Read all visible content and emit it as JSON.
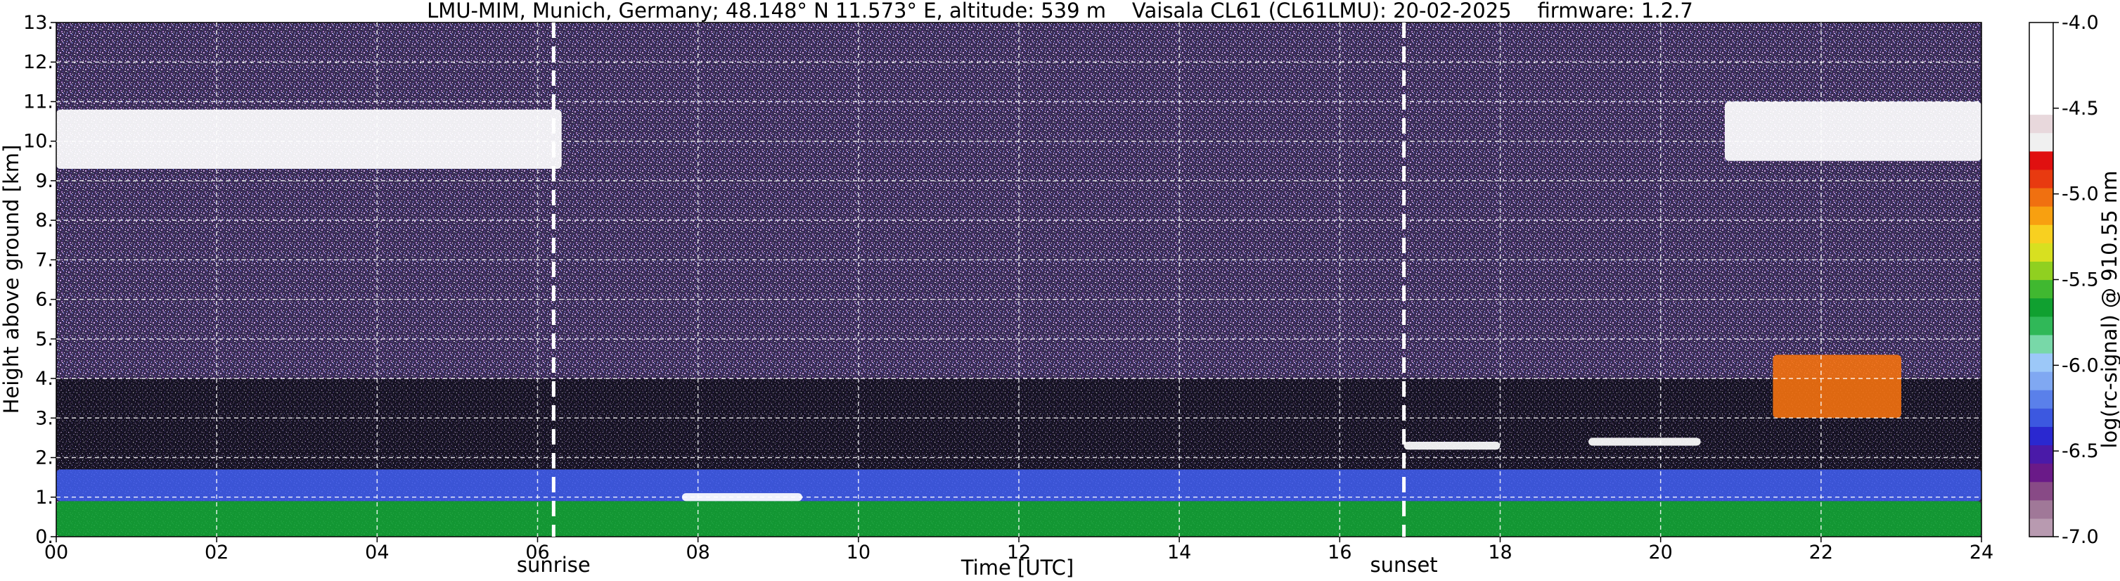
{
  "chart_data": {
    "type": "heatmap",
    "title": "LMU-MIM, Munich, Germany; 48.148° N 11.573° E, altitude: 539 m    Vaisala CL61 (CL61LMU): 20-02-2025    firmware: 1.2.7",
    "xlabel": "Time [UTC]",
    "ylabel": "Height above ground [km]",
    "xlim": [
      0,
      24
    ],
    "ylim": [
      0,
      13
    ],
    "x_ticks": [
      0,
      2,
      4,
      6,
      8,
      10,
      12,
      14,
      16,
      18,
      20,
      22,
      24
    ],
    "x_tick_labels": [
      "00",
      "02",
      "04",
      "06",
      "08",
      "10",
      "12",
      "14",
      "16",
      "18",
      "20",
      "22",
      "24"
    ],
    "y_ticks": [
      0,
      1,
      2,
      3,
      4,
      5,
      6,
      7,
      8,
      9,
      10,
      11,
      12,
      13
    ],
    "y_tick_labels": [
      "0.",
      "1.",
      "2.",
      "3.",
      "4.",
      "5.",
      "6.",
      "7.",
      "8.",
      "9.",
      "10.",
      "11.",
      "12.",
      "13."
    ],
    "grid": true,
    "events": [
      {
        "label": "sunrise",
        "x": 6.2
      },
      {
        "label": "sunset",
        "x": 16.8
      }
    ],
    "colorbar": {
      "label": "log(rc-signal) @ 910.55 nm",
      "range": [
        -7.0,
        -4.0
      ],
      "ticks": [
        -7.0,
        -6.5,
        -6.0,
        -5.5,
        -5.0,
        -4.5,
        -4.0
      ],
      "tick_labels": [
        "-7.0",
        "-6.5",
        "-6.0",
        "-5.5",
        "-5.0",
        "-4.5",
        "-4.0"
      ],
      "colors": [
        "#b89ab0",
        "#a07898",
        "#884a86",
        "#6a1a88",
        "#4a1aa8",
        "#2a28d0",
        "#3c58e0",
        "#5a80ea",
        "#80a8f2",
        "#9cc8f8",
        "#78d8a8",
        "#30b858",
        "#10a030",
        "#40b830",
        "#90d020",
        "#d8e020",
        "#f8d020",
        "#f8a010",
        "#f07010",
        "#e83a10",
        "#e01010",
        "#f0f0f0",
        "#e8d8dc",
        "#ffffff",
        "#ffffff",
        "#ffffff",
        "#ffffff",
        "#ffffff"
      ]
    },
    "layers": [
      {
        "feature": "boundary layer aerosol (green/yellow)",
        "x": [
          0,
          24
        ],
        "height_km": [
          0,
          0.9
        ],
        "level": -5.7
      },
      {
        "feature": "boundary layer aerosol (blue)",
        "x": [
          0,
          24
        ],
        "height_km": [
          0.9,
          1.7
        ],
        "level": -6.3
      },
      {
        "feature": "cirrus cloud",
        "x": [
          0,
          6.3
        ],
        "height_km": [
          9.3,
          10.8
        ],
        "level": -4.5
      },
      {
        "feature": "cloud layer",
        "x": [
          7.8,
          9.3
        ],
        "height_km": [
          0.9,
          1.1
        ],
        "level": -4.0
      },
      {
        "feature": "cloud layer",
        "x": [
          16.8,
          18.0
        ],
        "height_km": [
          2.2,
          2.4
        ],
        "level": -4.0
      },
      {
        "feature": "cloud layer",
        "x": [
          19.1,
          20.5
        ],
        "height_km": [
          2.3,
          2.5
        ],
        "level": -4.0
      },
      {
        "feature": "mid-level cloud",
        "x": [
          21.4,
          23.0
        ],
        "height_km": [
          3.0,
          4.6
        ],
        "level": -5.0
      },
      {
        "feature": "cirrus cloud",
        "x": [
          20.8,
          24
        ],
        "height_km": [
          9.5,
          11.0
        ],
        "level": -4.5
      }
    ]
  }
}
